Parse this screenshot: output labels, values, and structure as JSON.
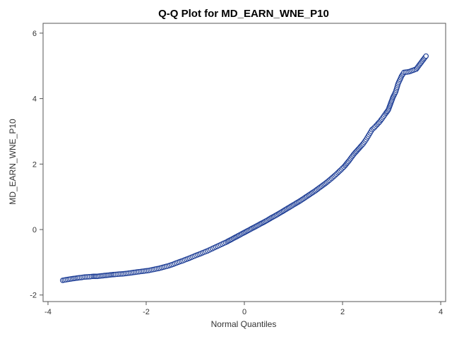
{
  "chart_data": {
    "type": "scatter",
    "title": "Q-Q Plot for MD_EARN_WNE_P10",
    "xlabel": "Normal Quantiles",
    "ylabel": "MD_EARN_WNE_P10",
    "xlim": [
      -4.1,
      4.1
    ],
    "ylim": [
      -2.2,
      6.3
    ],
    "xticks": [
      -4,
      -2,
      0,
      2,
      4
    ],
    "yticks": [
      -2,
      0,
      2,
      4,
      6
    ],
    "grid": false,
    "marker_color": "#1f3f96",
    "marker_fill": "#ffffff",
    "series": [
      {
        "points": [
          [
            -3.7,
            -1.55
          ],
          [
            -3.5,
            -1.5
          ],
          [
            -3.35,
            -1.47
          ],
          [
            -3.25,
            -1.45
          ],
          [
            -3.15,
            -1.44
          ],
          [
            -3.08,
            -1.43
          ],
          [
            -3.0,
            -1.43
          ],
          [
            -2.94,
            -1.42
          ],
          [
            -2.88,
            -1.41
          ],
          [
            -2.82,
            -1.4
          ],
          [
            -2.76,
            -1.39
          ],
          [
            -2.7,
            -1.38
          ],
          [
            -2.62,
            -1.37
          ],
          [
            -2.55,
            -1.36
          ],
          [
            -2.45,
            -1.35
          ],
          [
            -2.35,
            -1.33
          ],
          [
            -2.25,
            -1.31
          ],
          [
            -2.15,
            -1.29
          ],
          [
            -2.05,
            -1.27
          ],
          [
            -1.95,
            -1.25
          ],
          [
            -1.85,
            -1.22
          ],
          [
            -1.75,
            -1.19
          ],
          [
            -1.65,
            -1.15
          ],
          [
            -1.55,
            -1.11
          ],
          [
            -1.45,
            -1.06
          ],
          [
            -1.35,
            -1.0
          ],
          [
            -1.25,
            -0.95
          ],
          [
            -1.15,
            -0.89
          ],
          [
            -1.05,
            -0.83
          ],
          [
            -0.95,
            -0.77
          ],
          [
            -0.85,
            -0.71
          ],
          [
            -0.75,
            -0.65
          ],
          [
            -0.65,
            -0.58
          ],
          [
            -0.55,
            -0.51
          ],
          [
            -0.45,
            -0.44
          ],
          [
            -0.35,
            -0.37
          ],
          [
            -0.25,
            -0.29
          ],
          [
            -0.15,
            -0.21
          ],
          [
            -0.05,
            -0.13
          ],
          [
            0.05,
            -0.05
          ],
          [
            0.15,
            0.03
          ],
          [
            0.25,
            0.11
          ],
          [
            0.35,
            0.19
          ],
          [
            0.45,
            0.27
          ],
          [
            0.55,
            0.36
          ],
          [
            0.65,
            0.44
          ],
          [
            0.75,
            0.53
          ],
          [
            0.85,
            0.62
          ],
          [
            0.95,
            0.71
          ],
          [
            1.05,
            0.8
          ],
          [
            1.15,
            0.89
          ],
          [
            1.25,
            0.99
          ],
          [
            1.35,
            1.09
          ],
          [
            1.45,
            1.19
          ],
          [
            1.55,
            1.3
          ],
          [
            1.65,
            1.41
          ],
          [
            1.75,
            1.53
          ],
          [
            1.85,
            1.66
          ],
          [
            1.95,
            1.8
          ],
          [
            2.05,
            1.95
          ],
          [
            2.12,
            2.08
          ],
          [
            2.18,
            2.2
          ],
          [
            2.24,
            2.32
          ],
          [
            2.3,
            2.42
          ],
          [
            2.36,
            2.52
          ],
          [
            2.42,
            2.62
          ],
          [
            2.48,
            2.75
          ],
          [
            2.52,
            2.85
          ],
          [
            2.56,
            2.95
          ],
          [
            2.6,
            3.05
          ],
          [
            2.65,
            3.12
          ],
          [
            2.7,
            3.2
          ],
          [
            2.76,
            3.3
          ],
          [
            2.82,
            3.42
          ],
          [
            2.88,
            3.55
          ],
          [
            2.93,
            3.65
          ],
          [
            2.98,
            3.85
          ],
          [
            3.03,
            4.05
          ],
          [
            3.08,
            4.2
          ],
          [
            3.13,
            4.45
          ],
          [
            3.2,
            4.68
          ],
          [
            3.25,
            4.8
          ],
          [
            3.35,
            4.82
          ],
          [
            3.5,
            4.9
          ],
          [
            3.7,
            5.3
          ]
        ]
      }
    ]
  }
}
